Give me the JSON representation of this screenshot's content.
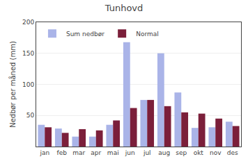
{
  "chart_data": {
    "type": "bar",
    "title": "Tunhovd",
    "ylabel": "Nedbør per måned (mm)",
    "categories": [
      "jan",
      "feb",
      "mar",
      "apr",
      "mai",
      "jun",
      "jul",
      "aug",
      "sep",
      "okt",
      "nov",
      "des"
    ],
    "series": [
      {
        "name": "Sum nedbør",
        "color": "#aab4e8",
        "values": [
          35,
          29,
          16,
          16,
          35,
          168,
          75,
          150,
          87,
          30,
          31,
          40
        ]
      },
      {
        "name": "Normal",
        "color": "#7b1f3a",
        "values": [
          31,
          22,
          28,
          26,
          42,
          62,
          75,
          65,
          55,
          53,
          45,
          33
        ]
      }
    ],
    "ylim": [
      0,
      200
    ],
    "yticks": [
      50,
      100,
      150,
      200
    ],
    "grid": true,
    "legend": "upper left"
  }
}
